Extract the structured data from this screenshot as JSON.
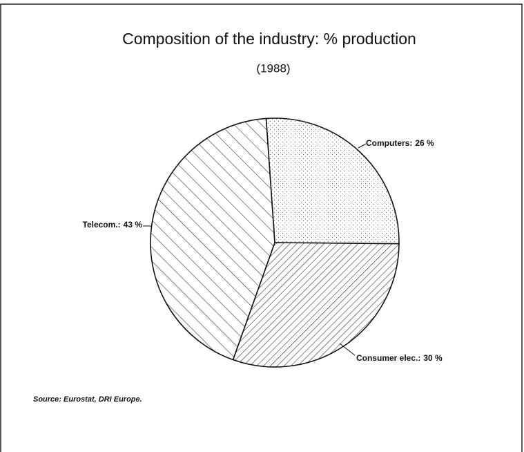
{
  "chart_data": {
    "type": "pie",
    "title": "Composition of the industry: % production",
    "subtitle": "(1988)",
    "categories": [
      "Computers:",
      "Consumer elec.:",
      "Telecom.:"
    ],
    "values": [
      26,
      30,
      43
    ],
    "value_labels": [
      "26 %",
      "30 %",
      "43 %"
    ],
    "source": "Source: Eurostat, DRI Europe."
  }
}
